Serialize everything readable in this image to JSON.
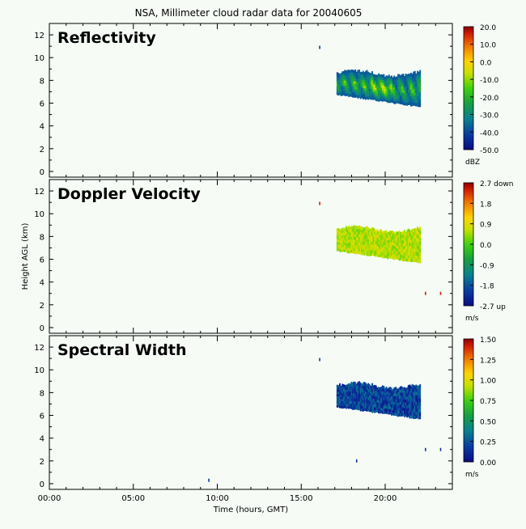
{
  "title": "NSA, Millimeter cloud radar data for 20040605",
  "colors": {
    "background": "#f6fbf6",
    "axis": "#000000"
  },
  "chart_data": [
    {
      "type": "heatmap",
      "panel_label": "Reflectivity",
      "xlabel": "",
      "ylabel": "",
      "xlim": [
        0,
        24
      ],
      "ylim": [
        -0.5,
        13
      ],
      "yticks": [
        "0",
        "2",
        "4",
        "6",
        "8",
        "10",
        "12"
      ],
      "colorbar": {
        "unit": "dBZ",
        "ticks": [
          "20.0",
          "10.0",
          "0.0",
          "-10.0",
          "-20.0",
          "-30.0",
          "-40.0",
          "-50.0"
        ],
        "range": [
          -50,
          20
        ]
      },
      "cloud": {
        "start_hour": 17.1,
        "end_hour": 22.1,
        "base_km_range": [
          5.6,
          6.8
        ],
        "top_km_range": [
          7.9,
          9.0
        ],
        "values_range_dBZ": [
          -45,
          -5
        ]
      },
      "isolated_echoes": [
        {
          "hour": 16.1,
          "height_km": 10.9
        }
      ]
    },
    {
      "type": "heatmap",
      "panel_label": "Doppler Velocity",
      "xlabel": "",
      "ylabel": "Height AGL (km)",
      "xlim": [
        0,
        24
      ],
      "ylim": [
        -0.5,
        13
      ],
      "yticks": [
        "0",
        "2",
        "4",
        "6",
        "8",
        "10",
        "12"
      ],
      "colorbar": {
        "unit": "m/s",
        "ticks": [
          "2.7 down",
          "1.8",
          "0.9",
          "0.0",
          "-0.9",
          "-1.8",
          "-2.7 up"
        ],
        "range": [
          -2.7,
          2.7
        ]
      },
      "cloud": {
        "start_hour": 17.1,
        "end_hour": 22.1,
        "base_km_range": [
          5.6,
          6.8
        ],
        "top_km_range": [
          7.9,
          9.0
        ],
        "values_range_ms": [
          0.2,
          0.9
        ]
      },
      "isolated_echoes": [
        {
          "hour": 16.1,
          "height_km": 10.9
        },
        {
          "hour": 22.4,
          "height_km": 3.0
        },
        {
          "hour": 23.3,
          "height_km": 3.0
        }
      ]
    },
    {
      "type": "heatmap",
      "panel_label": "Spectral Width",
      "xlabel": "Time (hours, GMT)",
      "ylabel": "",
      "xlim": [
        0,
        24
      ],
      "ylim": [
        -0.5,
        13
      ],
      "xticks": [
        "00:00",
        "05:00",
        "10:00",
        "15:00",
        "20:00"
      ],
      "yticks": [
        "0",
        "2",
        "4",
        "6",
        "8",
        "10",
        "12"
      ],
      "colorbar": {
        "unit": "m/s",
        "ticks": [
          "1.50",
          "1.25",
          "1.00",
          "0.75",
          "0.50",
          "0.25",
          "0.00"
        ],
        "range": [
          0,
          1.5
        ]
      },
      "cloud": {
        "start_hour": 17.1,
        "end_hour": 22.1,
        "base_km_range": [
          5.6,
          6.8
        ],
        "top_km_range": [
          7.9,
          9.0
        ],
        "values_range_ms": [
          0.05,
          0.35
        ]
      },
      "isolated_echoes": [
        {
          "hour": 16.1,
          "height_km": 10.9
        },
        {
          "hour": 18.3,
          "height_km": 2.0
        },
        {
          "hour": 22.4,
          "height_km": 3.0
        },
        {
          "hour": 23.3,
          "height_km": 3.0
        },
        {
          "hour": 9.5,
          "height_km": 0.3
        }
      ]
    }
  ]
}
